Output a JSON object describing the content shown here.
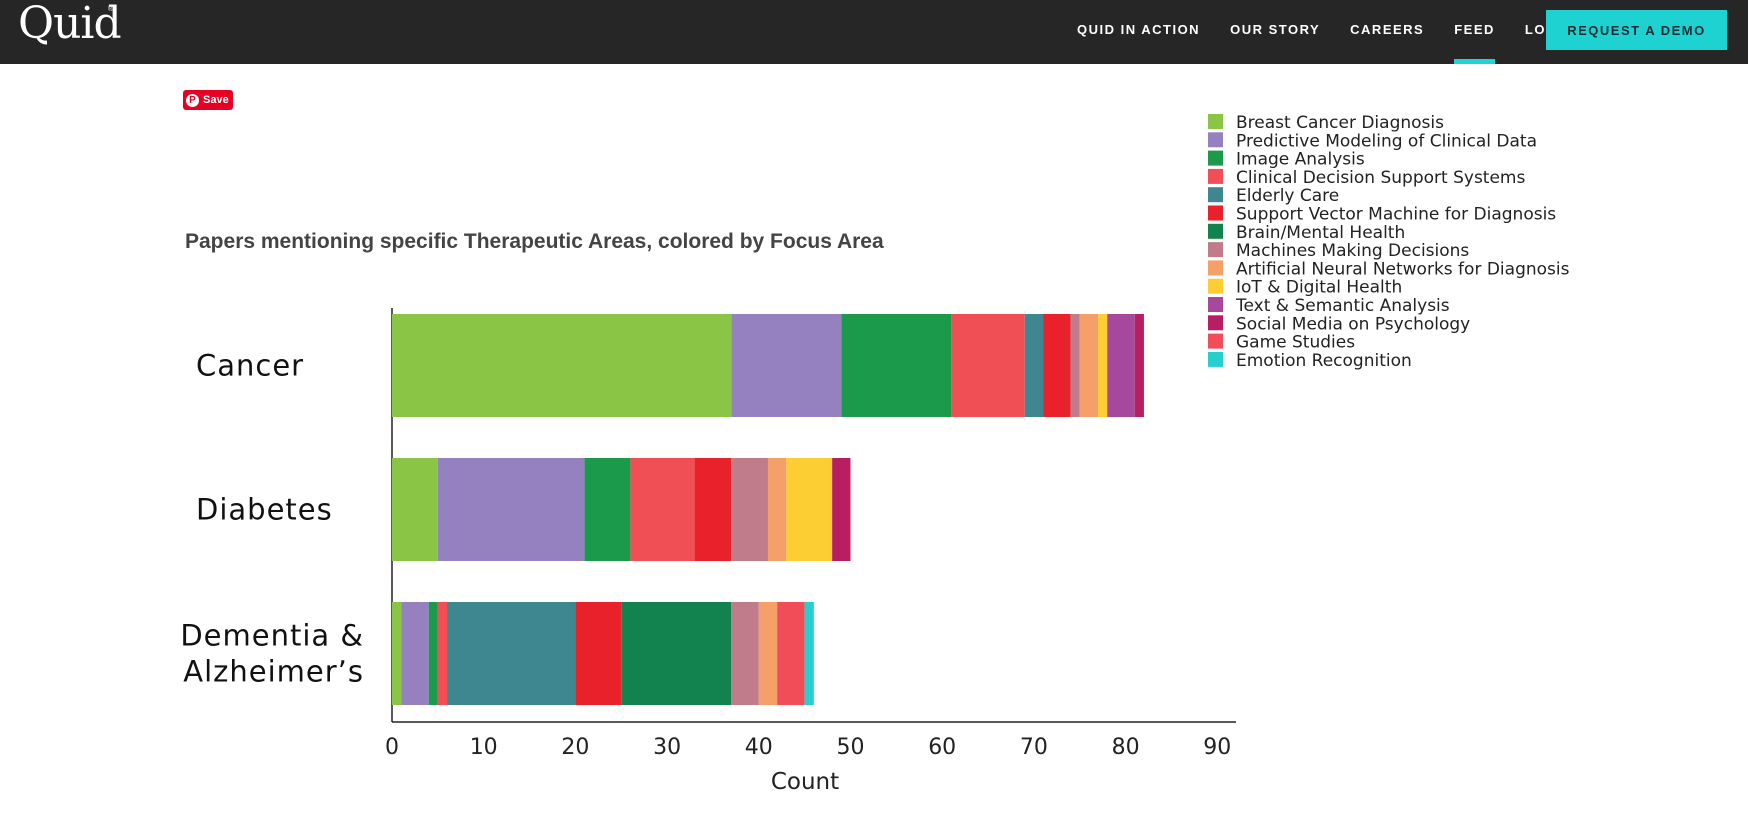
{
  "header": {
    "logo": "Quid",
    "logo_mark": "®",
    "nav": [
      "QUID IN ACTION",
      "OUR STORY",
      "CAREERS",
      "FEED",
      "LOG IN"
    ],
    "active_nav": "FEED",
    "cta": "REQUEST A DEMO"
  },
  "pinterest": {
    "label": "Save",
    "icon": "pinterest-icon"
  },
  "chart_data": {
    "type": "bar",
    "orientation": "horizontal",
    "stacked": true,
    "title": "Papers mentioning specific Therapeutic Areas, colored by Focus Area",
    "xlabel": "Count",
    "ylabel": "",
    "xlim": [
      0,
      90
    ],
    "xticks": [
      0,
      10,
      20,
      30,
      40,
      50,
      60,
      70,
      80,
      90
    ],
    "grid": false,
    "legend_position": "top-right",
    "categories": [
      "Cancer",
      "Diabetes",
      "Dementia & Alzheimer's"
    ],
    "category_lines": [
      [
        "Cancer"
      ],
      [
        "Diabetes"
      ],
      [
        "Dementia &",
        "Alzheimer’s"
      ]
    ],
    "series": [
      {
        "name": "Breast Cancer Diagnosis",
        "color": "#8bc545",
        "values": [
          37,
          5,
          1
        ]
      },
      {
        "name": "Predictive Modeling of Clinical Data",
        "color": "#9581c0",
        "values": [
          12,
          16,
          3
        ]
      },
      {
        "name": "Image Analysis",
        "color": "#1a9a4a",
        "values": [
          12,
          5,
          1
        ]
      },
      {
        "name": "Clinical Decision Support Systems",
        "color": "#f04f55",
        "values": [
          8,
          7,
          1
        ]
      },
      {
        "name": "Elderly Care",
        "color": "#3f8790",
        "values": [
          2,
          0,
          14
        ]
      },
      {
        "name": "Support Vector Machine for Diagnosis",
        "color": "#e8212b",
        "values": [
          3,
          4,
          5
        ]
      },
      {
        "name": "Brain/Mental Health",
        "color": "#12834e",
        "values": [
          0,
          0,
          12
        ]
      },
      {
        "name": "Machines Making Decisions",
        "color": "#c17c8c",
        "values": [
          1,
          4,
          3
        ]
      },
      {
        "name": "Artificial Neural Networks for Diagnosis",
        "color": "#f5a068",
        "values": [
          2,
          2,
          2
        ]
      },
      {
        "name": "IoT & Digital Health",
        "color": "#fdcd34",
        "values": [
          1,
          5,
          0
        ]
      },
      {
        "name": "Text & Semantic Analysis",
        "color": "#a6489b",
        "values": [
          3,
          0,
          0
        ]
      },
      {
        "name": "Social Media on Psychology",
        "color": "#b81f62",
        "values": [
          1,
          2,
          0
        ]
      },
      {
        "name": "Game Studies",
        "color": "#f04d58",
        "values": [
          0,
          0,
          3
        ]
      },
      {
        "name": "Emotion Recognition",
        "color": "#26cfcf",
        "values": [
          0,
          0,
          1
        ]
      }
    ]
  }
}
